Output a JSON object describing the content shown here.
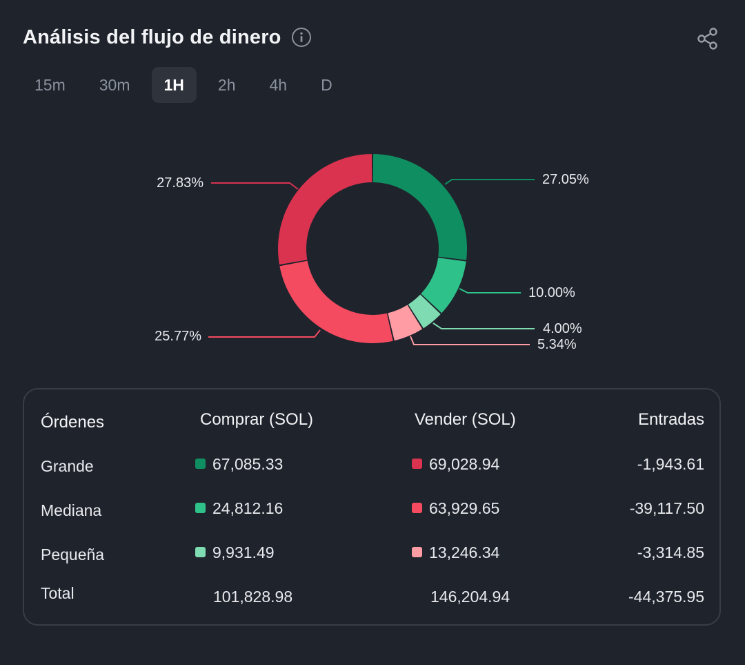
{
  "header": {
    "title": "Análisis del flujo de dinero",
    "info_icon": "info-circle-icon",
    "share_icon": "share-icon"
  },
  "tabs": [
    {
      "label": "15m",
      "active": false
    },
    {
      "label": "30m",
      "active": false
    },
    {
      "label": "1H",
      "active": true
    },
    {
      "label": "2h",
      "active": false
    },
    {
      "label": "4h",
      "active": false
    },
    {
      "label": "D",
      "active": false
    }
  ],
  "colors": {
    "background": "#1f232c",
    "buy_large": "#0f8f61",
    "buy_medium": "#2ec189",
    "buy_small": "#7fdcb2",
    "sell_large": "#d93350",
    "sell_medium": "#f54b60",
    "sell_small": "#ff9ca4"
  },
  "chart_data": {
    "type": "pie",
    "donut": true,
    "slices": [
      {
        "label": "27.05%",
        "value": 27.05,
        "color": "#0f8f61"
      },
      {
        "label": "10.00%",
        "value": 10.0,
        "color": "#2ec189"
      },
      {
        "label": "4.00%",
        "value": 4.0,
        "color": "#7fdcb2"
      },
      {
        "label": "5.34%",
        "value": 5.34,
        "color": "#ff9ca4"
      },
      {
        "label": "25.77%",
        "value": 25.77,
        "color": "#f54b60"
      },
      {
        "label": "27.83%",
        "value": 27.83,
        "color": "#d93350"
      }
    ]
  },
  "table": {
    "headers": {
      "orders": "Órdenes",
      "buy": "Comprar (SOL)",
      "sell": "Vender (SOL)",
      "inflow": "Entradas"
    },
    "rows": [
      {
        "name": "Grande",
        "buy": "67,085.33",
        "sell": "69,028.94",
        "inflow": "-1,943.61",
        "buy_color": "#0f8f61",
        "sell_color": "#d93350"
      },
      {
        "name": "Mediana",
        "buy": "24,812.16",
        "sell": "63,929.65",
        "inflow": "-39,117.50",
        "buy_color": "#2ec189",
        "sell_color": "#f54b60"
      },
      {
        "name": "Pequeña",
        "buy": "9,931.49",
        "sell": "13,246.34",
        "inflow": "-3,314.85",
        "buy_color": "#7fdcb2",
        "sell_color": "#ff9ca4"
      }
    ],
    "total": {
      "name": "Total",
      "buy": "101,828.98",
      "sell": "146,204.94",
      "inflow": "-44,375.95"
    }
  }
}
